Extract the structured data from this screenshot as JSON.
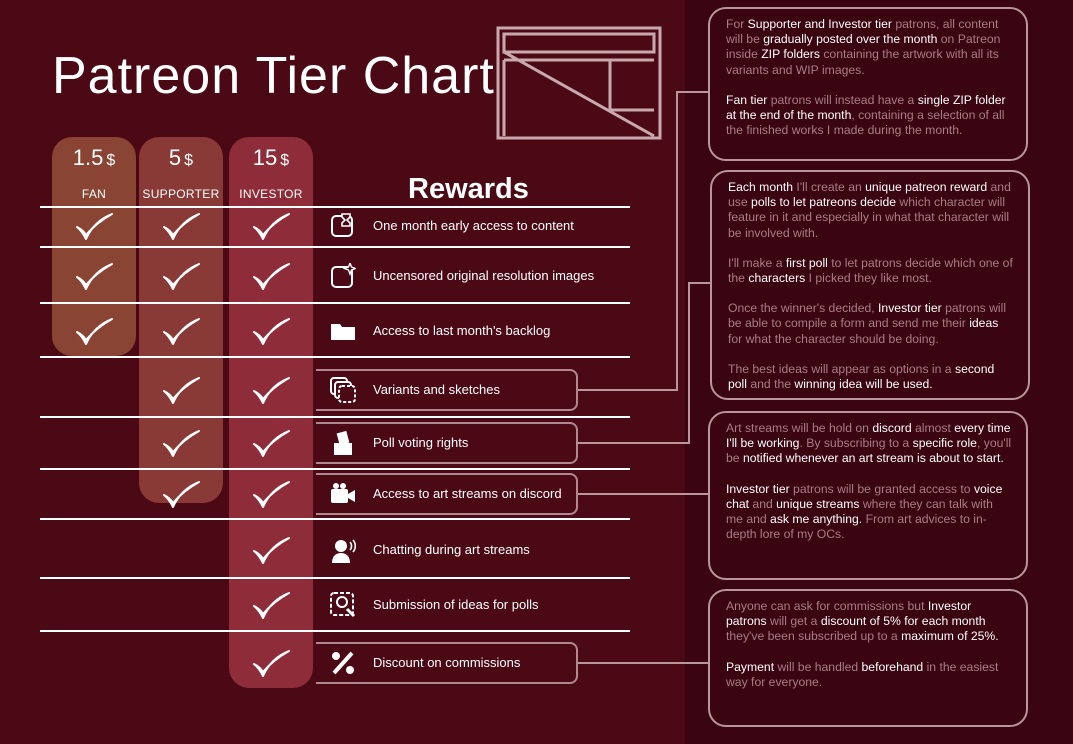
{
  "title": "Patreon Tier Chart",
  "rewards_heading": "Rewards",
  "colors": {
    "background": "#4a0915",
    "panel": "#3a0410",
    "fan": "#8a4433",
    "supporter": "#8a3a36",
    "investor": "#8e2c3a"
  },
  "tiers": [
    {
      "name": "FAN",
      "price": "1.5",
      "currency": "$",
      "rows_included": 3
    },
    {
      "name": "SUPPORTER",
      "price": "5",
      "currency": "$",
      "rows_included": 6
    },
    {
      "name": "INVESTOR",
      "price": "15",
      "currency": "$",
      "rows_included": 9
    }
  ],
  "rewards": [
    {
      "label": "One month early access to content",
      "icon": "hourglass-icon",
      "fan": true,
      "supporter": true,
      "investor": true
    },
    {
      "label": "Uncensored original resolution images",
      "icon": "sparkle-image-icon",
      "fan": true,
      "supporter": true,
      "investor": true
    },
    {
      "label": "Access to last month's backlog",
      "icon": "folder-icon",
      "fan": true,
      "supporter": true,
      "investor": true
    },
    {
      "label": "Variants and sketches",
      "icon": "stacked-images-icon",
      "fan": false,
      "supporter": true,
      "investor": true
    },
    {
      "label": "Poll voting rights",
      "icon": "ballot-box-icon",
      "fan": false,
      "supporter": true,
      "investor": true
    },
    {
      "label": "Access to art streams on discord",
      "icon": "video-camera-icon",
      "fan": false,
      "supporter": true,
      "investor": true
    },
    {
      "label": "Chatting during art streams",
      "icon": "voice-chat-icon",
      "fan": false,
      "supporter": false,
      "investor": true
    },
    {
      "label": "Submission of ideas for polls",
      "icon": "idea-submission-icon",
      "fan": false,
      "supporter": false,
      "investor": true
    },
    {
      "label": "Discount on commissions",
      "icon": "percent-icon",
      "fan": false,
      "supporter": false,
      "investor": true
    }
  ],
  "notes": [
    {
      "paragraphs": [
        [
          [
            "For ",
            0
          ],
          [
            "Supporter and Investor tier",
            1
          ],
          [
            " patrons, all content will be ",
            0
          ],
          [
            "gradually posted over the month",
            1
          ],
          [
            " on Patreon inside ",
            0
          ],
          [
            "ZIP folders",
            1
          ],
          [
            " containing the artwork with all its variants and WIP images.",
            0
          ]
        ],
        [
          [
            "Fan tier",
            1
          ],
          [
            " patrons will instead have a ",
            0
          ],
          [
            "single ZIP folder at the end of the month",
            1
          ],
          [
            ", containing a selection of all the finished works I made during the month.",
            0
          ]
        ]
      ]
    },
    {
      "paragraphs": [
        [
          [
            "Each month",
            1
          ],
          [
            " I'll create an ",
            0
          ],
          [
            "unique patreon reward",
            1
          ],
          [
            " and use ",
            0
          ],
          [
            "polls to let patreons decide",
            1
          ],
          [
            "  which character will feature in it and especially in what that character will be involved with.",
            0
          ]
        ],
        [
          [
            "I'll make a ",
            0
          ],
          [
            "first poll",
            1
          ],
          [
            " to let patrons decide which one of the ",
            0
          ],
          [
            "characters",
            1
          ],
          [
            " I picked they like most.",
            0
          ]
        ],
        [
          [
            "Once the winner's decided, ",
            0
          ],
          [
            "Investor tier",
            1
          ],
          [
            " patrons will be able to compile a form and send me their ",
            0
          ],
          [
            "ideas",
            1
          ],
          [
            " for what the character should be doing.",
            0
          ]
        ],
        [
          [
            "The best ideas will appear as options in a ",
            0
          ],
          [
            "second poll",
            1
          ],
          [
            " and the ",
            0
          ],
          [
            "winning idea will be used.",
            1
          ]
        ]
      ]
    },
    {
      "paragraphs": [
        [
          [
            "Art streams will be hold on ",
            0
          ],
          [
            "discord",
            1
          ],
          [
            " almost ",
            0
          ],
          [
            "every time I'll be working",
            1
          ],
          [
            ". By subscribing to a ",
            0
          ],
          [
            "specific role",
            1
          ],
          [
            ", you'll be ",
            0
          ],
          [
            "notified whenever an art stream is about to start.",
            1
          ]
        ],
        [
          [
            "Investor tier",
            1
          ],
          [
            " patrons will be granted access to ",
            0
          ],
          [
            "voice chat",
            1
          ],
          [
            " and ",
            0
          ],
          [
            "unique streams",
            1
          ],
          [
            " where they can talk with me and ",
            0
          ],
          [
            "ask me anything.",
            1
          ],
          [
            " From art advices to in-depth lore of my OCs.",
            0
          ]
        ]
      ]
    },
    {
      "paragraphs": [
        [
          [
            "Anyone can ask for commissions but ",
            0
          ],
          [
            "Investor patrons",
            1
          ],
          [
            " will get a ",
            0
          ],
          [
            "discount of 5% for each month",
            1
          ],
          [
            " they've been subscribed up to a ",
            0
          ],
          [
            "maximum of 25%.",
            1
          ]
        ],
        [
          [
            "Payment",
            1
          ],
          [
            " will be handled ",
            0
          ],
          [
            "beforehand",
            1
          ],
          [
            " in the easiest way for everyone.",
            0
          ]
        ]
      ]
    }
  ]
}
